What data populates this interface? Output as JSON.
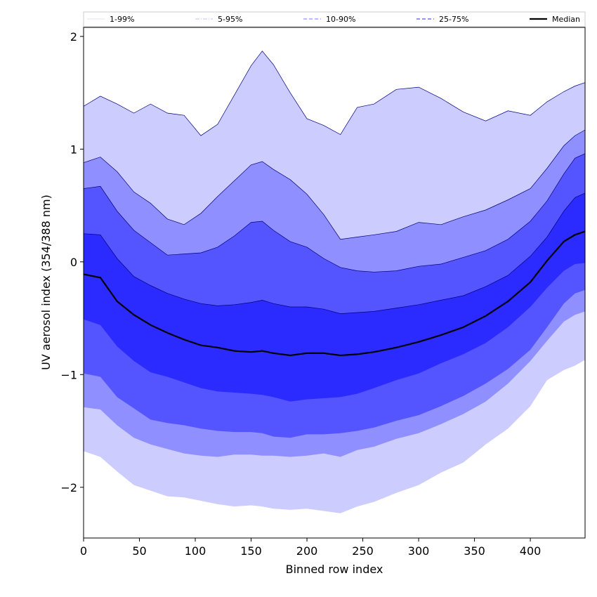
{
  "chart_data": {
    "type": "area",
    "xlabel": "Binned row index",
    "ylabel": "UV aerosol index (354/388 nm)",
    "xlim": [
      0,
      449
    ],
    "ylim": [
      -2.45,
      2.08
    ],
    "xticks": [
      0,
      50,
      100,
      150,
      200,
      250,
      300,
      350,
      400
    ],
    "yticks": [
      -2,
      -1,
      0,
      1,
      2
    ],
    "grid": false,
    "legend_placement": "top",
    "legend": [
      {
        "label": "1-99%",
        "color": "#e6e6ff",
        "style": "solid"
      },
      {
        "label": "5-95%",
        "color": "#ccccff",
        "style": "dashdot"
      },
      {
        "label": "10-90%",
        "color": "#8f8fff",
        "style": "dashed"
      },
      {
        "label": "25-75%",
        "color": "#5555ff",
        "style": "dashed"
      },
      {
        "label": "Median",
        "color": "#000000",
        "style": "solid"
      }
    ],
    "x": [
      0,
      15,
      30,
      45,
      60,
      75,
      90,
      105,
      120,
      135,
      150,
      160,
      170,
      185,
      200,
      215,
      230,
      245,
      260,
      280,
      300,
      320,
      340,
      360,
      380,
      400,
      415,
      430,
      440,
      449
    ],
    "series": [
      {
        "name": "5-95%",
        "color": "#ccccff",
        "upper": [
          1.38,
          1.47,
          1.4,
          1.32,
          1.4,
          1.32,
          1.3,
          1.12,
          1.22,
          1.48,
          1.74,
          1.87,
          1.75,
          1.5,
          1.27,
          1.21,
          1.13,
          1.37,
          1.4,
          1.53,
          1.55,
          1.45,
          1.33,
          1.25,
          1.34,
          1.3,
          1.42,
          1.51,
          1.56,
          1.59
        ],
        "lower": [
          -1.68,
          -1.73,
          -1.86,
          -1.98,
          -2.03,
          -2.08,
          -2.09,
          -2.12,
          -2.15,
          -2.17,
          -2.16,
          -2.17,
          -2.19,
          -2.2,
          -2.19,
          -2.21,
          -2.23,
          -2.17,
          -2.13,
          -2.05,
          -1.98,
          -1.87,
          -1.78,
          -1.62,
          -1.48,
          -1.28,
          -1.05,
          -0.96,
          -0.92,
          -0.87
        ]
      },
      {
        "name": "10-90%",
        "color": "#8f8fff",
        "upper": [
          0.88,
          0.93,
          0.8,
          0.62,
          0.52,
          0.38,
          0.33,
          0.43,
          0.58,
          0.72,
          0.86,
          0.89,
          0.82,
          0.73,
          0.6,
          0.42,
          0.2,
          0.22,
          0.24,
          0.27,
          0.35,
          0.33,
          0.4,
          0.46,
          0.55,
          0.65,
          0.83,
          1.03,
          1.12,
          1.17
        ],
        "lower": [
          -1.29,
          -1.31,
          -1.45,
          -1.56,
          -1.62,
          -1.66,
          -1.7,
          -1.72,
          -1.73,
          -1.71,
          -1.71,
          -1.72,
          -1.72,
          -1.73,
          -1.72,
          -1.7,
          -1.73,
          -1.67,
          -1.64,
          -1.57,
          -1.52,
          -1.44,
          -1.35,
          -1.24,
          -1.08,
          -0.88,
          -0.7,
          -0.53,
          -0.47,
          -0.44
        ]
      },
      {
        "name": "25-75%",
        "color": "#5555ff",
        "upper": [
          0.65,
          0.67,
          0.45,
          0.28,
          0.17,
          0.06,
          0.07,
          0.08,
          0.13,
          0.23,
          0.35,
          0.36,
          0.28,
          0.18,
          0.13,
          0.03,
          -0.05,
          -0.08,
          -0.09,
          -0.08,
          -0.04,
          -0.02,
          0.04,
          0.1,
          0.2,
          0.36,
          0.54,
          0.78,
          0.92,
          0.96
        ],
        "lower": [
          -0.99,
          -1.02,
          -1.2,
          -1.3,
          -1.4,
          -1.43,
          -1.45,
          -1.48,
          -1.5,
          -1.51,
          -1.51,
          -1.52,
          -1.55,
          -1.56,
          -1.53,
          -1.53,
          -1.52,
          -1.5,
          -1.47,
          -1.41,
          -1.36,
          -1.28,
          -1.19,
          -1.08,
          -0.95,
          -0.78,
          -0.58,
          -0.37,
          -0.28,
          -0.25
        ]
      },
      {
        "name": "Median",
        "color": "#2b2bff",
        "upper": [
          0.25,
          0.24,
          0.03,
          -0.13,
          -0.21,
          -0.28,
          -0.33,
          -0.37,
          -0.39,
          -0.38,
          -0.36,
          -0.34,
          -0.37,
          -0.4,
          -0.4,
          -0.42,
          -0.46,
          -0.45,
          -0.44,
          -0.41,
          -0.38,
          -0.34,
          -0.3,
          -0.22,
          -0.12,
          0.05,
          0.22,
          0.45,
          0.57,
          0.61
        ],
        "lower": [
          -0.51,
          -0.56,
          -0.75,
          -0.88,
          -0.98,
          -1.02,
          -1.07,
          -1.12,
          -1.15,
          -1.16,
          -1.17,
          -1.18,
          -1.2,
          -1.24,
          -1.22,
          -1.21,
          -1.2,
          -1.17,
          -1.12,
          -1.05,
          -0.99,
          -0.9,
          -0.82,
          -0.72,
          -0.58,
          -0.4,
          -0.23,
          -0.08,
          -0.02,
          -0.01
        ],
        "median": [
          -0.11,
          -0.14,
          -0.35,
          -0.47,
          -0.56,
          -0.63,
          -0.69,
          -0.74,
          -0.76,
          -0.79,
          -0.8,
          -0.79,
          -0.81,
          -0.83,
          -0.81,
          -0.81,
          -0.83,
          -0.82,
          -0.8,
          -0.76,
          -0.71,
          -0.65,
          -0.58,
          -0.48,
          -0.35,
          -0.18,
          0.01,
          0.18,
          0.24,
          0.27
        ]
      }
    ]
  }
}
